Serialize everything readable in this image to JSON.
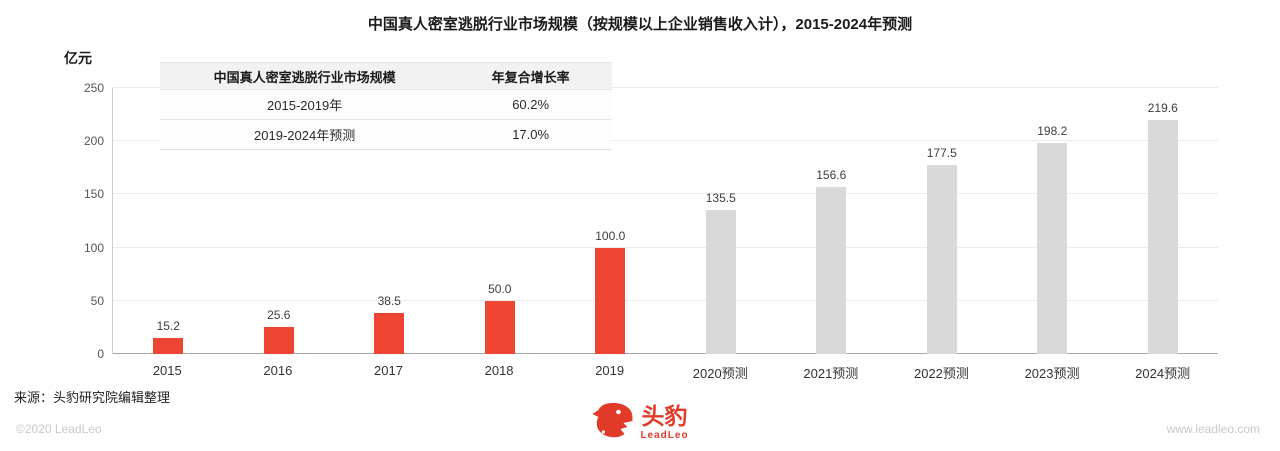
{
  "title": "中国真人密室逃脱行业市场规模（按规模以上企业销售收入计），2015-2024年预测",
  "y_axis_unit": "亿元",
  "inset_table": {
    "headers": [
      "中国真人密室逃脱行业市场规模",
      "年复合增长率"
    ],
    "rows": [
      [
        "2015-2019年",
        "60.2%"
      ],
      [
        "2019-2024年预测",
        "17.0%"
      ]
    ]
  },
  "chart_data": {
    "type": "bar",
    "categories": [
      "2015",
      "2016",
      "2017",
      "2018",
      "2019",
      "2020预测",
      "2021预测",
      "2022预测",
      "2023预测",
      "2024预测"
    ],
    "values": [
      15.2,
      25.6,
      38.5,
      50.0,
      100.0,
      135.5,
      156.6,
      177.5,
      198.2,
      219.6
    ],
    "title": "中国真人密室逃脱行业市场规模（按规模以上企业销售收入计），2015-2024年预测",
    "xlabel": "",
    "ylabel": "亿元",
    "ylim": [
      0,
      250
    ],
    "yticks": [
      0,
      50,
      100,
      150,
      200,
      250
    ],
    "actual_count": 5,
    "grid": true,
    "legend_position": "none",
    "colors": {
      "actual": "#ee4532",
      "forecast": "#d9d9d9"
    }
  },
  "source": "来源：头豹研究院编辑整理",
  "footer": {
    "copyright": "©2020 LeadLeo",
    "website": "www.leadleo.com"
  },
  "brand": {
    "name": "头豹",
    "subname": "LeadLeo",
    "color": "#e23a28"
  }
}
